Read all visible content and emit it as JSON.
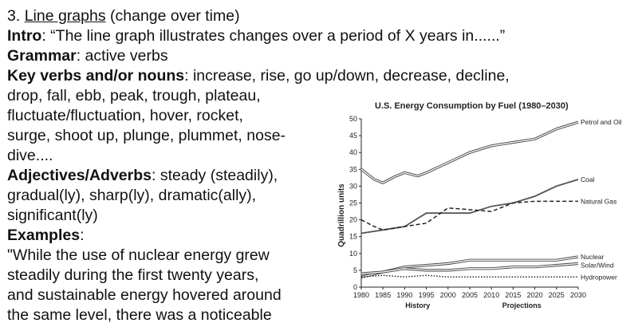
{
  "doc": {
    "heading_num": "3.",
    "heading_main": "Line graphs",
    "heading_rest": "(change over time)",
    "intro_label": "Intro",
    "intro_text": ": “The line graph illustrates changes over a period of X years in......”",
    "grammar_label": "Grammar",
    "grammar_text": ": active verbs",
    "keyverbs_label": "Key verbs and/or nouns",
    "keyverbs_text": ": increase, rise, go up/down, decrease, decline,",
    "keyverbs_line2": "drop, fall, ebb, peak, trough, plateau,",
    "keyverbs_line3": "fluctuate/fluctuation, hover, rocket,",
    "keyverbs_line4": "surge, shoot up, plunge, plummet, nose-",
    "keyverbs_line5": "dive....",
    "adj_label": "Adjectives/Adverbs",
    "adj_text": ": steady (steadily),",
    "adj_line2": "gradual(ly), sharp(ly), dramatic(ally),",
    "adj_line3": "significant(ly)",
    "examples_label": "Examples",
    "examples_colon": ":",
    "example_line1": "\"While the use of nuclear energy grew",
    "example_line2": "steadily during the first twenty years,",
    "example_line3": "and sustainable energy hovered around",
    "example_line4": "the same level, there was a noticeable"
  },
  "chart_data": {
    "type": "line",
    "title": "U.S. Energy Consumption by Fuel (1980–2030)",
    "xlabel": "",
    "ylabel": "Quadrillion units",
    "xlim": [
      1980,
      2030
    ],
    "ylim": [
      0,
      50
    ],
    "x_ticks": [
      1980,
      1985,
      1990,
      1995,
      2000,
      2005,
      2010,
      2015,
      2020,
      2025,
      2030
    ],
    "y_ticks": [
      0,
      5,
      10,
      15,
      20,
      25,
      30,
      35,
      40,
      45,
      50
    ],
    "period_labels": [
      "History",
      "Projections"
    ],
    "series": [
      {
        "name": "Petrol and Oil",
        "style": "double",
        "x": [
          1980,
          1983,
          1985,
          1988,
          1990,
          1993,
          1995,
          2000,
          2005,
          2010,
          2015,
          2020,
          2025,
          2030
        ],
        "y": [
          35,
          32,
          31,
          33,
          34,
          33,
          34,
          37,
          40,
          42,
          43,
          44,
          47,
          49
        ]
      },
      {
        "name": "Coal",
        "style": "solid",
        "x": [
          1980,
          1985,
          1990,
          1995,
          2000,
          2005,
          2010,
          2015,
          2020,
          2025,
          2030
        ],
        "y": [
          16,
          17,
          18,
          22,
          22,
          22,
          24,
          25,
          27,
          30,
          32
        ]
      },
      {
        "name": "Natural Gas",
        "style": "dashed",
        "x": [
          1980,
          1983,
          1985,
          1990,
          1995,
          2000,
          2005,
          2010,
          2015,
          2020,
          2025,
          2030
        ],
        "y": [
          20,
          18,
          17,
          18,
          19,
          23.5,
          23,
          22.5,
          25,
          25.5,
          25.5,
          25.5
        ]
      },
      {
        "name": "Nuclear",
        "style": "double",
        "x": [
          1980,
          1985,
          1990,
          1995,
          2000,
          2005,
          2010,
          2015,
          2020,
          2025,
          2030
        ],
        "y": [
          3,
          4.5,
          6,
          6.5,
          7,
          8,
          8,
          8,
          8,
          8,
          9
        ]
      },
      {
        "name": "Solar/Wind",
        "style": "double",
        "x": [
          1980,
          1985,
          1990,
          1995,
          2000,
          2005,
          2010,
          2015,
          2020,
          2025,
          2030
        ],
        "y": [
          4,
          4.5,
          5.5,
          5,
          5,
          5.5,
          5.5,
          6,
          6,
          6.5,
          7
        ]
      },
      {
        "name": "Hydropower",
        "style": "dotted",
        "x": [
          1980,
          1985,
          1990,
          1995,
          2000,
          2005,
          2010,
          2015,
          2020,
          2025,
          2030
        ],
        "y": [
          3,
          3.5,
          3,
          3.5,
          3,
          3,
          3,
          3,
          3,
          3,
          3
        ]
      }
    ]
  }
}
